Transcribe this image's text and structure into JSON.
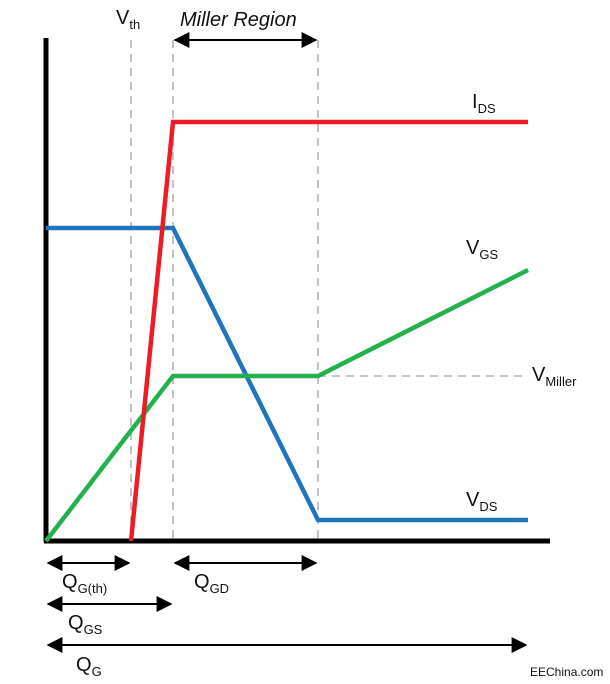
{
  "labels": {
    "vth_main": "V",
    "vth_sub": "th",
    "miller_region": "Miller Region",
    "ids_main": "I",
    "ids_sub": "DS",
    "vgs_main": "V",
    "vgs_sub": "GS",
    "vmiller_main": "V",
    "vmiller_sub": "Miller",
    "vds_main": "V",
    "vds_sub": "DS",
    "qgth_main": "Q",
    "qgth_sub": "G(th)",
    "qgd_main": "Q",
    "qgd_sub": "GD",
    "qgs_main": "Q",
    "qgs_sub": "GS",
    "qg_main": "Q",
    "qg_sub": "G",
    "watermark": "EEChina.com"
  },
  "colors": {
    "ids": "#ee1c25",
    "vds": "#1f74bd",
    "vgs": "#22b14c",
    "axis": "#000000",
    "guide": "#b3b3b3"
  }
}
